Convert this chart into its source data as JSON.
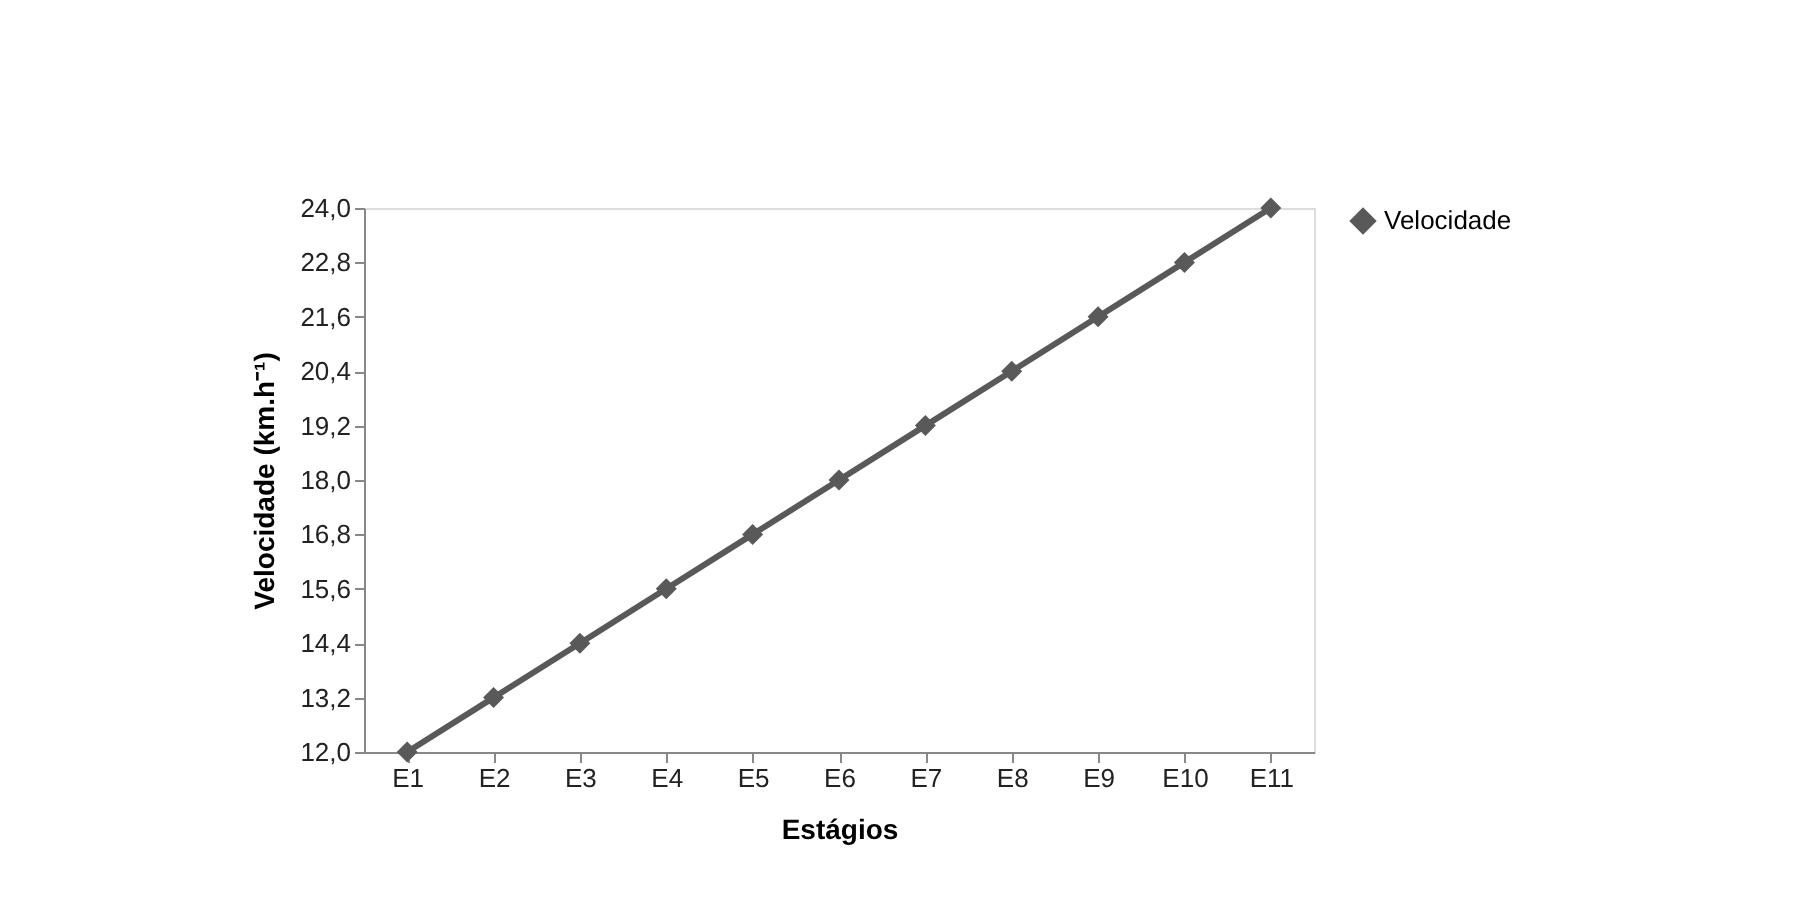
{
  "chart_data": {
    "type": "line",
    "xlabel": "Estágios",
    "ylabel": "Velocidade (km.h⁻¹)",
    "categories": [
      "E1",
      "E2",
      "E3",
      "E4",
      "E5",
      "E6",
      "E7",
      "E8",
      "E9",
      "E10",
      "E11"
    ],
    "series": [
      {
        "name": "Velocidade",
        "color": "#595959",
        "values": [
          12.0,
          13.2,
          14.4,
          15.6,
          16.8,
          18.0,
          19.2,
          20.4,
          21.6,
          22.8,
          24.0
        ]
      }
    ],
    "ylim": [
      12.0,
      24.0
    ],
    "yticks": [
      {
        "value": 12.0,
        "label": "12,0"
      },
      {
        "value": 13.2,
        "label": "13,2"
      },
      {
        "value": 14.4,
        "label": "14,4"
      },
      {
        "value": 15.6,
        "label": "15,6"
      },
      {
        "value": 16.8,
        "label": "16,8"
      },
      {
        "value": 18.0,
        "label": "18,0"
      },
      {
        "value": 19.2,
        "label": "19,2"
      },
      {
        "value": 20.4,
        "label": "20,4"
      },
      {
        "value": 21.6,
        "label": "21,6"
      },
      {
        "value": 22.8,
        "label": "22,8"
      },
      {
        "value": 24.0,
        "label": "24,0"
      }
    ],
    "grid": false,
    "legend": "right",
    "marker": "diamond",
    "line_style": "solid"
  }
}
